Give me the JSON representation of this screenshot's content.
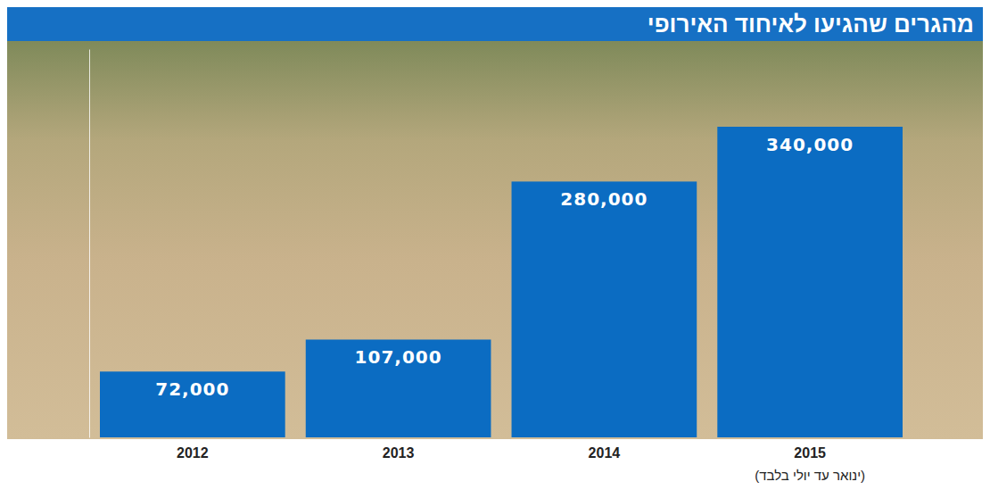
{
  "chart_data": {
    "type": "bar",
    "title": "מהגרים שהגיעו לאיחוד האירופי",
    "categories": [
      "2012",
      "2013",
      "2014",
      "2015"
    ],
    "values": [
      72000,
      107000,
      280000,
      340000
    ],
    "value_labels": [
      "72,000",
      "107,000",
      "280,000",
      "340,000"
    ],
    "annotations": [
      "(ינואר עד יולי בלבד)"
    ],
    "color": "#0b6cc2",
    "ylim": [
      0,
      425000
    ],
    "data_labels": true,
    "tick_labels": "x"
  }
}
